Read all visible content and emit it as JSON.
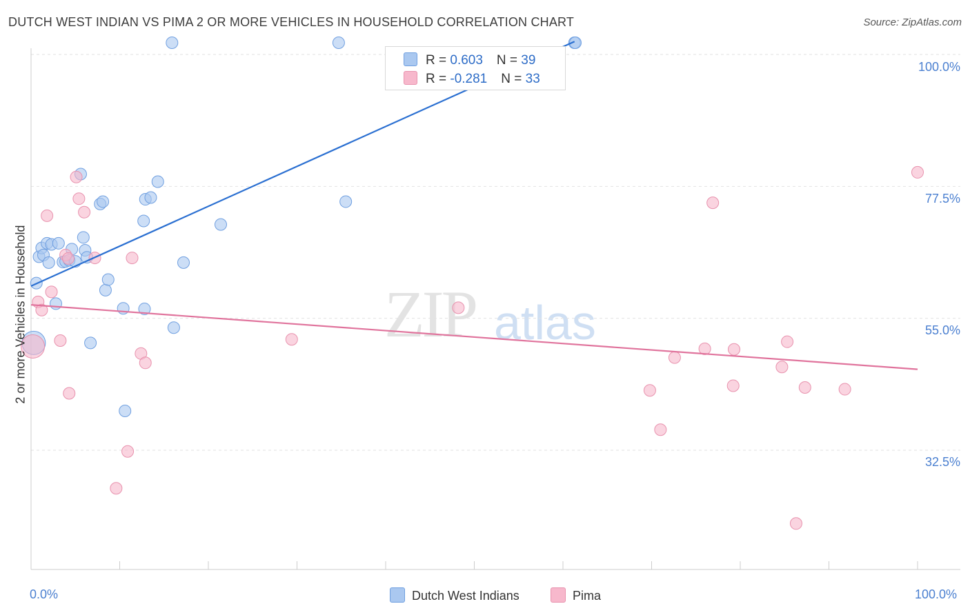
{
  "header": {
    "title": "DUTCH WEST INDIAN VS PIMA 2 OR MORE VEHICLES IN HOUSEHOLD CORRELATION CHART",
    "source": "Source: ZipAtlas.com"
  },
  "watermark": {
    "zip": "ZIP",
    "atlas": "atlas"
  },
  "legend": {
    "rows": [
      {
        "r_label": "R = ",
        "r_value": "0.603",
        "n_label": "N = ",
        "n_value": "39",
        "color": "#aac8f0"
      },
      {
        "r_label": "R = ",
        "r_value": "-0.281",
        "n_label": "N = ",
        "n_value": "33",
        "color": "#f7b8cc"
      }
    ]
  },
  "bottom_legend": {
    "items": [
      {
        "label": "Dutch West Indians",
        "color": "#aac8f0"
      },
      {
        "label": "Pima",
        "color": "#f7b8cc"
      }
    ]
  },
  "chart_data": {
    "type": "scatter",
    "title": "DUTCH WEST INDIAN VS PIMA 2 OR MORE VEHICLES IN HOUSEHOLD CORRELATION CHART",
    "xlabel": "",
    "ylabel": "2 or more Vehicles in Household",
    "xlim": [
      0,
      100
    ],
    "ylim": [
      15,
      102
    ],
    "x_tick_labels": [
      "0.0%",
      "100.0%"
    ],
    "y_tick_labels": [
      "100.0%",
      "77.5%",
      "55.0%",
      "32.5%"
    ],
    "y_ticks": [
      100,
      77.5,
      55,
      32.5
    ],
    "grid": true,
    "legend_position": "top-center",
    "series": [
      {
        "name": "Dutch West Indians",
        "color": "#aac8f0",
        "stroke": "#6f9fe0",
        "trend_color": "#2a6fd1",
        "trend": {
          "x": [
            0,
            61.3
          ],
          "y": [
            60.5,
            102.2
          ]
        },
        "points": [
          {
            "x": 0.3,
            "y": 50.8,
            "big": true
          },
          {
            "x": 0.6,
            "y": 61.0
          },
          {
            "x": 0.9,
            "y": 65.5
          },
          {
            "x": 1.2,
            "y": 67.0
          },
          {
            "x": 1.4,
            "y": 65.8
          },
          {
            "x": 1.8,
            "y": 67.8
          },
          {
            "x": 2.0,
            "y": 64.5
          },
          {
            "x": 2.3,
            "y": 67.6
          },
          {
            "x": 2.8,
            "y": 57.5
          },
          {
            "x": 3.1,
            "y": 67.8
          },
          {
            "x": 3.6,
            "y": 64.6
          },
          {
            "x": 3.9,
            "y": 64.7
          },
          {
            "x": 4.3,
            "y": 64.9
          },
          {
            "x": 4.6,
            "y": 66.8
          },
          {
            "x": 5.0,
            "y": 64.7
          },
          {
            "x": 5.6,
            "y": 79.6
          },
          {
            "x": 5.9,
            "y": 68.8
          },
          {
            "x": 6.1,
            "y": 66.6
          },
          {
            "x": 6.3,
            "y": 65.4
          },
          {
            "x": 6.7,
            "y": 50.8
          },
          {
            "x": 7.8,
            "y": 74.5
          },
          {
            "x": 8.1,
            "y": 74.9
          },
          {
            "x": 8.4,
            "y": 59.8
          },
          {
            "x": 8.7,
            "y": 61.6
          },
          {
            "x": 10.4,
            "y": 56.7
          },
          {
            "x": 10.6,
            "y": 39.2
          },
          {
            "x": 12.7,
            "y": 71.6
          },
          {
            "x": 12.9,
            "y": 75.3
          },
          {
            "x": 12.8,
            "y": 56.6
          },
          {
            "x": 13.5,
            "y": 75.6
          },
          {
            "x": 14.3,
            "y": 78.3
          },
          {
            "x": 16.1,
            "y": 53.4
          },
          {
            "x": 17.2,
            "y": 64.5
          },
          {
            "x": 15.9,
            "y": 102.0
          },
          {
            "x": 21.4,
            "y": 71.0
          },
          {
            "x": 34.7,
            "y": 102.0
          },
          {
            "x": 35.5,
            "y": 74.9
          },
          {
            "x": 61.3,
            "y": 102.0
          },
          {
            "x": 61.4,
            "y": 102.0
          }
        ]
      },
      {
        "name": "Pima",
        "color": "#f7b8cc",
        "stroke": "#e891ad",
        "trend_color": "#e0739c",
        "trend": {
          "x": [
            0,
            100
          ],
          "y": [
            57.3,
            46.3
          ]
        },
        "points": [
          {
            "x": 0.2,
            "y": 50.2,
            "big": true
          },
          {
            "x": 0.8,
            "y": 57.8
          },
          {
            "x": 1.2,
            "y": 56.4
          },
          {
            "x": 1.8,
            "y": 72.5
          },
          {
            "x": 2.3,
            "y": 59.5
          },
          {
            "x": 3.3,
            "y": 51.2
          },
          {
            "x": 3.9,
            "y": 65.8
          },
          {
            "x": 4.2,
            "y": 65.2
          },
          {
            "x": 4.3,
            "y": 42.2
          },
          {
            "x": 5.1,
            "y": 79.1
          },
          {
            "x": 5.4,
            "y": 75.4
          },
          {
            "x": 6.0,
            "y": 73.1
          },
          {
            "x": 7.2,
            "y": 65.3
          },
          {
            "x": 9.6,
            "y": 26.0
          },
          {
            "x": 10.9,
            "y": 32.3
          },
          {
            "x": 11.4,
            "y": 65.3
          },
          {
            "x": 12.4,
            "y": 49.0
          },
          {
            "x": 12.9,
            "y": 47.4
          },
          {
            "x": 29.4,
            "y": 51.4
          },
          {
            "x": 48.2,
            "y": 56.8
          },
          {
            "x": 69.8,
            "y": 42.7
          },
          {
            "x": 71.0,
            "y": 36.0
          },
          {
            "x": 72.6,
            "y": 48.3
          },
          {
            "x": 76.0,
            "y": 49.8
          },
          {
            "x": 76.9,
            "y": 74.7
          },
          {
            "x": 79.3,
            "y": 49.7
          },
          {
            "x": 79.2,
            "y": 43.5
          },
          {
            "x": 84.7,
            "y": 46.7
          },
          {
            "x": 85.3,
            "y": 51.0
          },
          {
            "x": 86.3,
            "y": 20.0
          },
          {
            "x": 87.3,
            "y": 43.2
          },
          {
            "x": 91.8,
            "y": 42.9
          },
          {
            "x": 100.0,
            "y": 79.9
          }
        ]
      }
    ]
  }
}
